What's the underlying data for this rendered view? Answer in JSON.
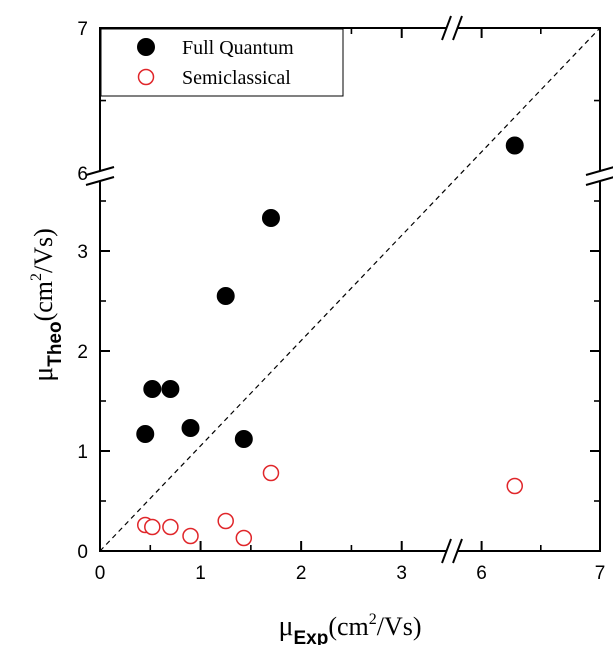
{
  "chart_data": {
    "type": "scatter",
    "title": "",
    "xlabel": {
      "symbol": "μ",
      "subscript": "Exp",
      "unit_pre": "(cm",
      "unit_sup": "2",
      "unit_post": "/Vs)"
    },
    "ylabel": {
      "symbol": "μ",
      "subscript": "Theo",
      "unit_pre": "(cm",
      "unit_sup": "2",
      "unit_post": "/Vs)"
    },
    "x_axis": {
      "broken": true,
      "segments": [
        {
          "min": 0,
          "max": 3.5
        },
        {
          "min": 5.75,
          "max": 7
        }
      ],
      "major_ticks": [
        {
          "value": 0,
          "label": "0"
        },
        {
          "value": 1,
          "label": "1"
        },
        {
          "value": 2,
          "label": "2"
        },
        {
          "value": 3,
          "label": "3"
        },
        {
          "value": 6,
          "label": "6"
        },
        {
          "value": 7,
          "label": "7"
        }
      ],
      "minor_ticks": [
        0.5,
        1.5,
        2.5,
        6.5
      ]
    },
    "y_axis": {
      "broken": true,
      "segments": [
        {
          "min": 0,
          "max": 3.75
        },
        {
          "min": 5.98,
          "max": 7
        }
      ],
      "major_ticks": [
        {
          "value": 0,
          "label": "0"
        },
        {
          "value": 1,
          "label": "1"
        },
        {
          "value": 2,
          "label": "2"
        },
        {
          "value": 3,
          "label": "3"
        },
        {
          "value": 6,
          "label": "6"
        },
        {
          "value": 7,
          "label": "7"
        }
      ],
      "minor_ticks": [
        0.5,
        1.5,
        2.5,
        3.5,
        6.5
      ]
    },
    "reference_line": {
      "style": "dashed",
      "description": "y = x",
      "from": [
        0,
        0
      ],
      "to": [
        7,
        7
      ]
    },
    "legend": {
      "position": "top-left"
    },
    "series": [
      {
        "name": "Full Quantum",
        "marker": "filled-circle",
        "color": "#000000",
        "points": [
          {
            "x": 0.45,
            "y": 1.17
          },
          {
            "x": 0.52,
            "y": 1.62
          },
          {
            "x": 0.7,
            "y": 1.62
          },
          {
            "x": 0.9,
            "y": 1.23
          },
          {
            "x": 1.25,
            "y": 2.55
          },
          {
            "x": 1.43,
            "y": 1.12
          },
          {
            "x": 1.7,
            "y": 3.33
          },
          {
            "x": 6.28,
            "y": 6.19
          }
        ]
      },
      {
        "name": "Semiclassical",
        "marker": "open-circle",
        "color": "#e0262a",
        "points": [
          {
            "x": 0.45,
            "y": 0.26
          },
          {
            "x": 0.52,
            "y": 0.24
          },
          {
            "x": 0.7,
            "y": 0.24
          },
          {
            "x": 0.9,
            "y": 0.15
          },
          {
            "x": 1.25,
            "y": 0.3
          },
          {
            "x": 1.43,
            "y": 0.13
          },
          {
            "x": 1.7,
            "y": 0.78
          },
          {
            "x": 6.28,
            "y": 0.65
          }
        ]
      }
    ]
  }
}
